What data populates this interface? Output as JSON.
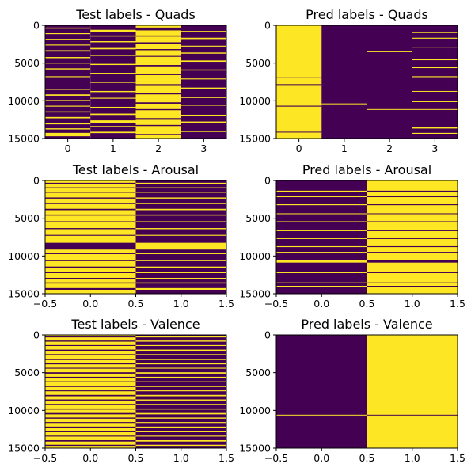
{
  "colors": {
    "low": "#440154",
    "high": "#fde725",
    "axis": "#000000"
  },
  "chart_data": [
    {
      "type": "heatmap",
      "title": "Test labels - Quads",
      "columns": 4,
      "xticks": [
        "0",
        "1",
        "2",
        "3"
      ],
      "xlim": [
        -0.5,
        3.5
      ],
      "yticks": [
        "0",
        "5000",
        "10000",
        "15000"
      ],
      "ylim": [
        15000,
        0
      ],
      "rows": 15000,
      "values": "one-hot quadrant label per sample (0 = purple, 1 = yellow); stripes scattered across all four columns"
    },
    {
      "type": "heatmap",
      "title": "Pred labels - Quads",
      "columns": 4,
      "xticks": [
        "0",
        "1",
        "2",
        "3"
      ],
      "xlim": [
        -0.5,
        3.5
      ],
      "yticks": [
        "0",
        "5000",
        "10000",
        "15000"
      ],
      "ylim": [
        15000,
        0
      ],
      "rows": 15000,
      "values": "column 0 mostly yellow, columns 1-2 almost entirely purple, column 3 mostly purple with scattered stripes"
    },
    {
      "type": "heatmap",
      "title": "Test labels - Arousal",
      "columns": 2,
      "xticks": [
        "−0.5",
        "0.0",
        "0.5",
        "1.0",
        "1.5"
      ],
      "xlim": [
        -0.5,
        1.5
      ],
      "yticks": [
        "0",
        "5000",
        "10000",
        "15000"
      ],
      "ylim": [
        15000,
        0
      ],
      "rows": 15000,
      "values": "complementary one-hot arousal labels; column 0 yellow where column 1 purple"
    },
    {
      "type": "heatmap",
      "title": "Pred labels - Arousal",
      "columns": 2,
      "xticks": [
        "−0.5",
        "0.0",
        "0.5",
        "1.0",
        "1.5"
      ],
      "xlim": [
        -0.5,
        1.5
      ],
      "yticks": [
        "0",
        "5000",
        "10000",
        "15000"
      ],
      "ylim": [
        15000,
        0
      ],
      "rows": 15000,
      "values": "column 0 mostly purple, column 1 mostly yellow with a few inverted stripes"
    },
    {
      "type": "heatmap",
      "title": "Test labels - Valence",
      "columns": 2,
      "xticks": [
        "−0.5",
        "0.0",
        "0.5",
        "1.0",
        "1.5"
      ],
      "xlim": [
        -0.5,
        1.5
      ],
      "yticks": [
        "0",
        "5000",
        "10000",
        "15000"
      ],
      "ylim": [
        15000,
        0
      ],
      "rows": 15000,
      "values": "complementary one-hot valence labels with dense alternating stripes"
    },
    {
      "type": "heatmap",
      "title": "Pred labels - Valence",
      "columns": 2,
      "xticks": [
        "−0.5",
        "0.0",
        "0.5",
        "1.0",
        "1.5"
      ],
      "xlim": [
        -0.5,
        1.5
      ],
      "yticks": [
        "0",
        "5000",
        "10000",
        "15000"
      ],
      "ylim": [
        15000,
        0
      ],
      "rows": 15000,
      "values": "column 0 entirely purple, column 1 entirely yellow, single inverted row near 10600"
    }
  ]
}
